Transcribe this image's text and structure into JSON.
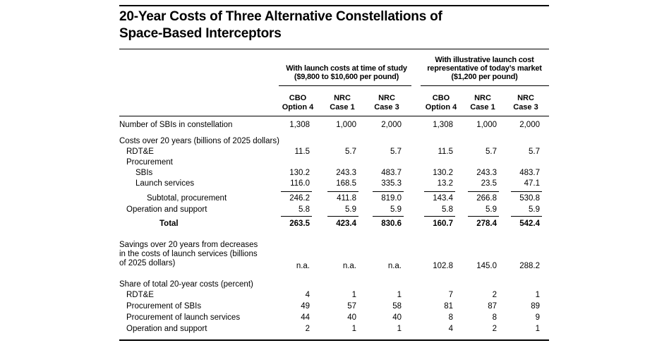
{
  "title_line1": "20-Year Costs of Three Alternative Constellations of",
  "title_line2": "Space-Based Interceptors",
  "group1": {
    "line1": "With launch costs at time of study",
    "line2": "($9,800 to $10,600 per pound)"
  },
  "group2": {
    "line1": "With illustrative launch cost",
    "line2": "representative of today’s market",
    "line3": "($1,200 per pound)"
  },
  "columns": [
    {
      "line1": "CBO",
      "line2": "Option 4"
    },
    {
      "line1": "NRC",
      "line2": "Case 1"
    },
    {
      "line1": "NRC",
      "line2": "Case 3"
    },
    {
      "line1": "CBO",
      "line2": "Option 4"
    },
    {
      "line1": "NRC",
      "line2": "Case 1"
    },
    {
      "line1": "NRC",
      "line2": "Case 3"
    }
  ],
  "rows": {
    "sbis": {
      "label": "Number of SBIs in constellation",
      "values": [
        "1,308",
        "1,000",
        "2,000",
        "1,308",
        "1,000",
        "2,000"
      ]
    },
    "costs_header": {
      "label": "Costs over 20 years (billions of 2025 dollars)"
    },
    "rdte": {
      "label": "RDT&E",
      "values": [
        "11.5",
        "5.7",
        "5.7",
        "11.5",
        "5.7",
        "5.7"
      ]
    },
    "procurement_header": {
      "label": "Procurement"
    },
    "proc_sbis": {
      "label": "SBIs",
      "values": [
        "130.2",
        "243.3",
        "483.7",
        "130.2",
        "243.3",
        "483.7"
      ]
    },
    "launch": {
      "label": "Launch services",
      "values": [
        "116.0",
        "168.5",
        "335.3",
        "13.2",
        "23.5",
        "47.1"
      ]
    },
    "subtotal": {
      "label": "Subtotal, procurement",
      "values": [
        "246.2",
        "411.8",
        "819.0",
        "143.4",
        "266.8",
        "530.8"
      ]
    },
    "ops": {
      "label": "Operation and support",
      "values": [
        "5.8",
        "5.9",
        "5.9",
        "5.8",
        "5.9",
        "5.9"
      ]
    },
    "total": {
      "label": "Total",
      "values": [
        "263.5",
        "423.4",
        "830.6",
        "160.7",
        "278.4",
        "542.4"
      ]
    },
    "savings": {
      "line1": "Savings over 20 years from decreases",
      "line2": "in the costs of launch services (billions",
      "line3": "of 2025 dollars)",
      "values": [
        "n.a.",
        "n.a.",
        "n.a.",
        "102.8",
        "145.0",
        "288.2"
      ]
    },
    "share_header": {
      "label": "Share of total 20-year costs (percent)"
    },
    "share_rdte": {
      "label": "RDT&E",
      "values": [
        "4",
        "1",
        "1",
        "7",
        "2",
        "1"
      ]
    },
    "share_proc_sbis": {
      "label": "Procurement of SBIs",
      "values": [
        "49",
        "57",
        "58",
        "81",
        "87",
        "89"
      ]
    },
    "share_launch": {
      "label": "Procurement of launch services",
      "values": [
        "44",
        "40",
        "40",
        "8",
        "8",
        "9"
      ]
    },
    "share_ops": {
      "label": "Operation and support",
      "values": [
        "2",
        "1",
        "1",
        "4",
        "2",
        "1"
      ]
    }
  }
}
